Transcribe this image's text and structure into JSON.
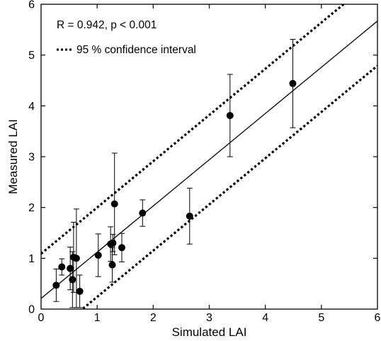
{
  "chart_data": {
    "type": "scatter",
    "xlabel": "Simulated LAI",
    "ylabel": "Measured LAI",
    "xlim": [
      0,
      6
    ],
    "ylim": [
      0,
      6
    ],
    "xticks": [
      "0",
      "1",
      "2",
      "3",
      "4",
      "5",
      "6"
    ],
    "yticks": [
      "0",
      "1",
      "2",
      "3",
      "4",
      "5",
      "6"
    ],
    "grid": false,
    "annotations": {
      "stats": "R = 0.942, p < 0.001",
      "ci_legend": "95 % confidence interval"
    },
    "points": [
      {
        "x": 0.27,
        "y": 0.47,
        "err": 0.32
      },
      {
        "x": 0.37,
        "y": 0.83,
        "err": 0.16
      },
      {
        "x": 0.52,
        "y": 0.8,
        "err": 0.42
      },
      {
        "x": 0.56,
        "y": 0.58,
        "err": 0.55
      },
      {
        "x": 0.58,
        "y": 1.02,
        "err": 0.69
      },
      {
        "x": 0.63,
        "y": 1.0,
        "err": 0.97
      },
      {
        "x": 0.69,
        "y": 0.35,
        "err": 0.32
      },
      {
        "x": 1.02,
        "y": 1.06,
        "err": 0.42
      },
      {
        "x": 1.24,
        "y": 1.28,
        "err": 0.34
      },
      {
        "x": 1.27,
        "y": 0.87,
        "err": 0.34
      },
      {
        "x": 1.28,
        "y": 1.3,
        "err": 0.17
      },
      {
        "x": 1.31,
        "y": 2.07,
        "err": 1.0
      },
      {
        "x": 1.44,
        "y": 1.21,
        "err": 0.28
      },
      {
        "x": 1.81,
        "y": 1.89,
        "err": 0.26
      },
      {
        "x": 2.65,
        "y": 1.83,
        "err": 0.55
      },
      {
        "x": 3.37,
        "y": 3.81,
        "err": 0.81
      },
      {
        "x": 4.49,
        "y": 4.44,
        "err": 0.87
      }
    ],
    "regression_line": {
      "slope": 0.91,
      "intercept": 0.21
    },
    "confidence_interval": {
      "offset": 0.88
    }
  }
}
